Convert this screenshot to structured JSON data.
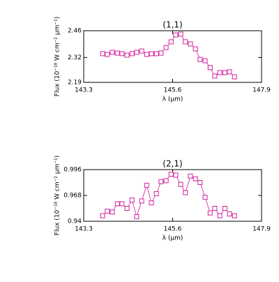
{
  "chart_data": [
    {
      "type": "line",
      "title": "(1,1)",
      "x_label": "λ (μm)",
      "y_label": "Flux (10⁻¹⁸ W cm⁻² μm⁻¹)",
      "x": [
        143.79,
        143.91,
        144.04,
        144.17,
        144.29,
        144.42,
        144.55,
        144.67,
        144.8,
        144.93,
        145.05,
        145.18,
        145.3,
        145.43,
        145.56,
        145.68,
        145.81,
        145.93,
        146.06,
        146.19,
        146.31,
        146.44,
        146.57,
        146.69,
        146.82,
        146.95,
        147.07,
        147.2
      ],
      "series": [
        {
          "name": "(1,1)",
          "color": "#d4209a",
          "values": [
            2.34,
            2.336,
            2.347,
            2.343,
            2.34,
            2.332,
            2.34,
            2.347,
            2.354,
            2.336,
            2.34,
            2.34,
            2.343,
            2.372,
            2.402,
            2.438,
            2.442,
            2.402,
            2.391,
            2.365,
            2.31,
            2.303,
            2.267,
            2.223,
            2.241,
            2.241,
            2.245,
            2.219
          ]
        }
      ],
      "xlim": [
        143.3,
        147.9
      ],
      "xticks": [
        143.3,
        145.6,
        147.9
      ],
      "ylim": [
        2.19,
        2.46
      ],
      "yticks": [
        2.19,
        2.32,
        2.46
      ]
    },
    {
      "type": "line",
      "title": "(2,1)",
      "x_label": "λ (μm)",
      "y_label": "Flux (10⁻¹⁸ W cm⁻² μm⁻¹)",
      "x": [
        143.79,
        143.91,
        144.04,
        144.17,
        144.29,
        144.42,
        144.55,
        144.67,
        144.8,
        144.93,
        145.05,
        145.18,
        145.3,
        145.43,
        145.56,
        145.68,
        145.81,
        145.93,
        146.06,
        146.19,
        146.31,
        146.44,
        146.57,
        146.69,
        146.82,
        146.95,
        147.07,
        147.2
      ],
      "series": [
        {
          "name": "(2,1)",
          "color": "#d4209a",
          "values": [
            0.946,
            0.951,
            0.95,
            0.959,
            0.959,
            0.954,
            0.963,
            0.945,
            0.962,
            0.979,
            0.96,
            0.97,
            0.983,
            0.984,
            0.991,
            0.99,
            0.98,
            0.971,
            0.989,
            0.986,
            0.982,
            0.966,
            0.949,
            0.954,
            0.946,
            0.954,
            0.948,
            0.946
          ]
        }
      ],
      "xlim": [
        143.3,
        147.9
      ],
      "xticks": [
        143.3,
        145.6,
        147.9
      ],
      "ylim": [
        0.94,
        0.996
      ],
      "yticks": [
        0.94,
        0.968,
        0.996
      ]
    }
  ]
}
